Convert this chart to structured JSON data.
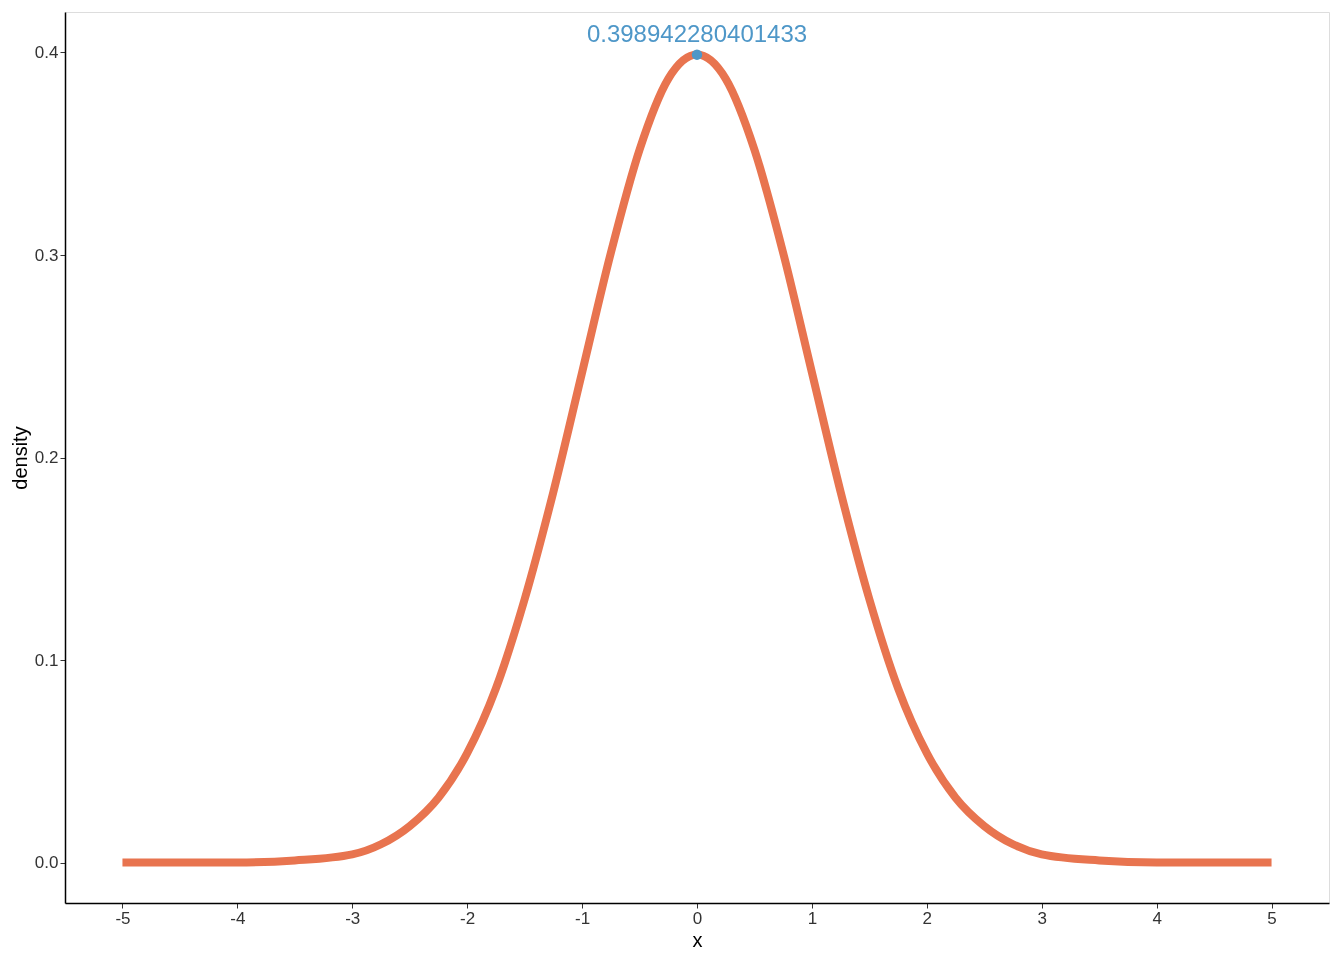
{
  "chart_data": {
    "type": "line",
    "xlabel": "x",
    "ylabel": "density",
    "xlim": [
      -5.5,
      5.5
    ],
    "xticks": [
      -5,
      -4,
      -3,
      -2,
      -1,
      0,
      1,
      2,
      3,
      4,
      5
    ],
    "ylim": [
      -0.02,
      0.42
    ],
    "yticks": [
      {
        "value": 0,
        "label": "0.0"
      },
      0.1,
      0.2,
      0.3,
      0.4
    ],
    "grid": false,
    "series": [
      {
        "color": "#e8744f",
        "line_style": "solid",
        "marker": "none",
        "x": [
          -5,
          -4.5,
          -4,
          -3.5,
          -3,
          -2.75,
          -2.5,
          -2.25,
          -2,
          -1.75,
          -1.5,
          -1.25,
          -1,
          -0.75,
          -0.5,
          -0.25,
          0,
          0.25,
          0.5,
          0.75,
          1,
          1.25,
          1.5,
          1.75,
          2,
          2.25,
          2.5,
          2.75,
          3,
          3.5,
          4,
          4.5,
          5
        ],
        "values": [
          0.0,
          0.0,
          0.0,
          0.001,
          0.004,
          0.009,
          0.018,
          0.032,
          0.054,
          0.086,
          0.13,
          0.183,
          0.242,
          0.301,
          0.352,
          0.387,
          0.399,
          0.387,
          0.352,
          0.301,
          0.242,
          0.183,
          0.13,
          0.086,
          0.054,
          0.032,
          0.018,
          0.009,
          0.004,
          0.001,
          0.0,
          0.0,
          0.0
        ]
      },
      {
        "type": "scatter",
        "color": "#4e97c8",
        "marker": "circle",
        "x": [
          0
        ],
        "values": [
          0.398942280401433
        ],
        "value_labels": [
          "0.398942280401433"
        ]
      }
    ]
  }
}
